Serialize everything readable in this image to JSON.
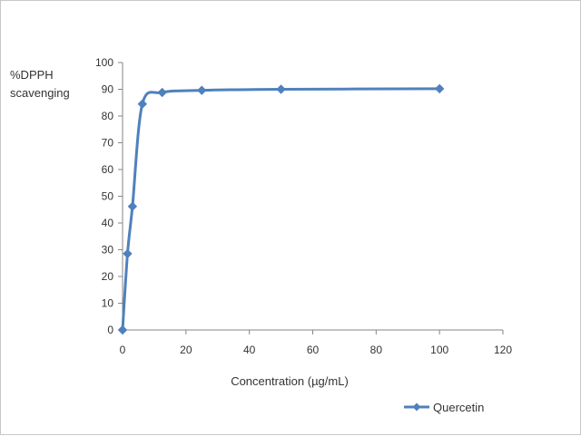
{
  "chart_data": {
    "type": "line",
    "title": "",
    "xlabel": "Concentration (µg/mL)",
    "ylabel_lines": [
      "%DPPH",
      "scavenging"
    ],
    "xlim": [
      0,
      120
    ],
    "ylim": [
      0,
      100
    ],
    "x_ticks": [
      0,
      20,
      40,
      60,
      80,
      100,
      120
    ],
    "y_ticks": [
      0,
      10,
      20,
      30,
      40,
      50,
      60,
      70,
      80,
      90,
      100
    ],
    "grid": false,
    "legend_position": "bottom-right",
    "series": [
      {
        "name": "Quercetin",
        "color": "#4f81bd",
        "marker": "diamond",
        "smooth": true,
        "x": [
          0,
          1.5625,
          3.125,
          6.25,
          12.5,
          25,
          50,
          100
        ],
        "y": [
          0,
          28.5,
          46.2,
          84.5,
          88.8,
          89.6,
          90.0,
          90.2
        ]
      }
    ]
  }
}
